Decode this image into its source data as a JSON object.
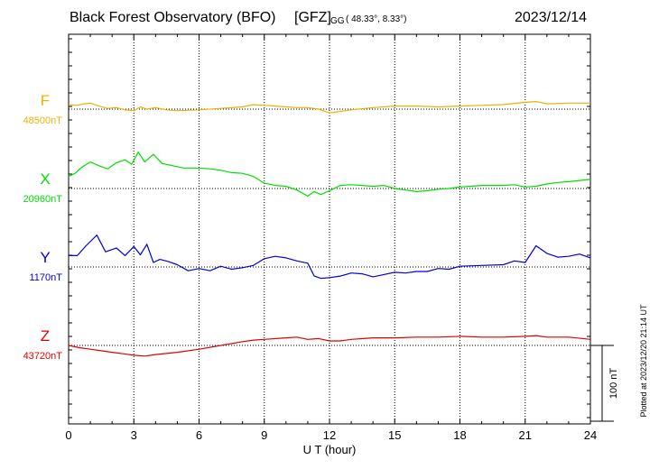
{
  "header": {
    "station": "Black Forest Observatory (BFO)",
    "institute": "[GFZ]",
    "coord_prefix": "GG",
    "coords": "( 48.33°,  8.33°)",
    "date": "2023/12/14"
  },
  "footer": {
    "plotted": "Plotted at 2023/12/20 21:14 UT"
  },
  "chart_data": {
    "type": "line",
    "xlabel": "U T (hour)",
    "xlim": [
      0,
      24
    ],
    "xticks": [
      0,
      3,
      6,
      9,
      12,
      15,
      18,
      21,
      24
    ],
    "grid": true,
    "scale_bar": {
      "label": "100 nT",
      "value_nT": 100
    },
    "units_note": "values are deviations in nT from each series baseline",
    "colors": {
      "F": "#f0b000",
      "X": "#00dd00",
      "Y": "#0000dd",
      "Z": "#dd0000"
    },
    "series": [
      {
        "name": "F",
        "baseline_label": "48500nT",
        "baseline_nT": 48500,
        "points": [
          [
            0,
            6
          ],
          [
            0.4,
            5
          ],
          [
            0.7,
            7
          ],
          [
            1,
            8
          ],
          [
            1.4,
            4
          ],
          [
            1.8,
            1
          ],
          [
            2.2,
            2
          ],
          [
            2.6,
            -1
          ],
          [
            3,
            -2
          ],
          [
            3.3,
            3
          ],
          [
            3.6,
            0
          ],
          [
            4,
            2
          ],
          [
            4.5,
            -1
          ],
          [
            5,
            -2
          ],
          [
            6,
            -1
          ],
          [
            7,
            1
          ],
          [
            8,
            3
          ],
          [
            8.5,
            6
          ],
          [
            9,
            5
          ],
          [
            9.5,
            4
          ],
          [
            10,
            3
          ],
          [
            10.5,
            2
          ],
          [
            11,
            2
          ],
          [
            11.5,
            0
          ],
          [
            12,
            -5
          ],
          [
            12.5,
            -3
          ],
          [
            13,
            -1
          ],
          [
            14,
            2
          ],
          [
            15,
            4
          ],
          [
            16,
            4
          ],
          [
            17,
            3
          ],
          [
            18,
            4
          ],
          [
            19,
            5
          ],
          [
            20,
            6
          ],
          [
            21,
            9
          ],
          [
            21.5,
            10
          ],
          [
            22,
            7
          ],
          [
            23,
            8
          ],
          [
            24,
            8
          ]
        ]
      },
      {
        "name": "X",
        "baseline_label": "20960nT",
        "baseline_nT": 20960,
        "points": [
          [
            0,
            16
          ],
          [
            0.3,
            20
          ],
          [
            0.6,
            28
          ],
          [
            1,
            35
          ],
          [
            1.4,
            30
          ],
          [
            1.8,
            26
          ],
          [
            2.2,
            34
          ],
          [
            2.6,
            38
          ],
          [
            2.9,
            32
          ],
          [
            3.2,
            48
          ],
          [
            3.5,
            35
          ],
          [
            3.9,
            45
          ],
          [
            4.3,
            33
          ],
          [
            4.8,
            30
          ],
          [
            5.3,
            27
          ],
          [
            6,
            27
          ],
          [
            6.5,
            26
          ],
          [
            7,
            24
          ],
          [
            7.5,
            21
          ],
          [
            8,
            20
          ],
          [
            8.5,
            16
          ],
          [
            9,
            7
          ],
          [
            9.5,
            4
          ],
          [
            10,
            3
          ],
          [
            10.5,
            -2
          ],
          [
            11,
            -10
          ],
          [
            11.3,
            -4
          ],
          [
            11.6,
            -8
          ],
          [
            12,
            -3
          ],
          [
            12.5,
            4
          ],
          [
            13,
            5
          ],
          [
            14,
            3
          ],
          [
            14.5,
            4
          ],
          [
            15,
            0
          ],
          [
            15.5,
            -2
          ],
          [
            16,
            -4
          ],
          [
            16.5,
            -3
          ],
          [
            17,
            -1
          ],
          [
            17.5,
            0
          ],
          [
            18,
            2
          ],
          [
            18.5,
            3
          ],
          [
            19,
            4
          ],
          [
            20,
            4
          ],
          [
            20.5,
            5
          ],
          [
            21,
            2
          ],
          [
            21.5,
            3
          ],
          [
            22,
            6
          ],
          [
            22.5,
            8
          ],
          [
            23,
            9
          ],
          [
            24,
            12
          ]
        ]
      },
      {
        "name": "Y",
        "baseline_label": "1170nT",
        "baseline_nT": 1170,
        "points": [
          [
            0,
            15
          ],
          [
            0.4,
            15
          ],
          [
            0.8,
            28
          ],
          [
            1.3,
            42
          ],
          [
            1.7,
            20
          ],
          [
            2.2,
            25
          ],
          [
            2.6,
            15
          ],
          [
            3,
            27
          ],
          [
            3.3,
            16
          ],
          [
            3.6,
            30
          ],
          [
            3.9,
            6
          ],
          [
            4.2,
            10
          ],
          [
            4.6,
            7
          ],
          [
            5,
            3
          ],
          [
            5.5,
            -5
          ],
          [
            6,
            -2
          ],
          [
            6.5,
            -5
          ],
          [
            7,
            1
          ],
          [
            7.5,
            -3
          ],
          [
            8,
            -1
          ],
          [
            8.5,
            2
          ],
          [
            9,
            11
          ],
          [
            9.5,
            14
          ],
          [
            10,
            12
          ],
          [
            10.5,
            8
          ],
          [
            11,
            5
          ],
          [
            11.3,
            -12
          ],
          [
            11.6,
            -15
          ],
          [
            12,
            -14
          ],
          [
            12.5,
            -12
          ],
          [
            13,
            -8
          ],
          [
            13.5,
            -9
          ],
          [
            14,
            -13
          ],
          [
            14.5,
            -10
          ],
          [
            15,
            -7
          ],
          [
            15.5,
            -8
          ],
          [
            16,
            -6
          ],
          [
            16.5,
            -6
          ],
          [
            17,
            -2
          ],
          [
            17.5,
            -3
          ],
          [
            18,
            1
          ],
          [
            19,
            2
          ],
          [
            20,
            3
          ],
          [
            20.5,
            8
          ],
          [
            21,
            6
          ],
          [
            21.5,
            28
          ],
          [
            22,
            18
          ],
          [
            22.5,
            13
          ],
          [
            23,
            14
          ],
          [
            23.5,
            17
          ],
          [
            24,
            12
          ]
        ]
      },
      {
        "name": "Z",
        "baseline_label": "43720nT",
        "baseline_nT": 43720,
        "points": [
          [
            0,
            0
          ],
          [
            0.5,
            -3
          ],
          [
            1,
            -5
          ],
          [
            1.5,
            -7
          ],
          [
            2,
            -9
          ],
          [
            2.5,
            -11
          ],
          [
            3,
            -13
          ],
          [
            3.5,
            -14
          ],
          [
            4,
            -12
          ],
          [
            5,
            -9
          ],
          [
            6,
            -5
          ],
          [
            7,
            0
          ],
          [
            8,
            5
          ],
          [
            8.5,
            7
          ],
          [
            9,
            8
          ],
          [
            10,
            10
          ],
          [
            10.5,
            11
          ],
          [
            11,
            8
          ],
          [
            11.5,
            9
          ],
          [
            12,
            6
          ],
          [
            12.5,
            6
          ],
          [
            13,
            8
          ],
          [
            14,
            10
          ],
          [
            15,
            10
          ],
          [
            16,
            11
          ],
          [
            17,
            11
          ],
          [
            18,
            12
          ],
          [
            19,
            11
          ],
          [
            20,
            11
          ],
          [
            21,
            12
          ],
          [
            21.5,
            13
          ],
          [
            22,
            11
          ],
          [
            23,
            11
          ],
          [
            24,
            8
          ]
        ]
      }
    ]
  }
}
